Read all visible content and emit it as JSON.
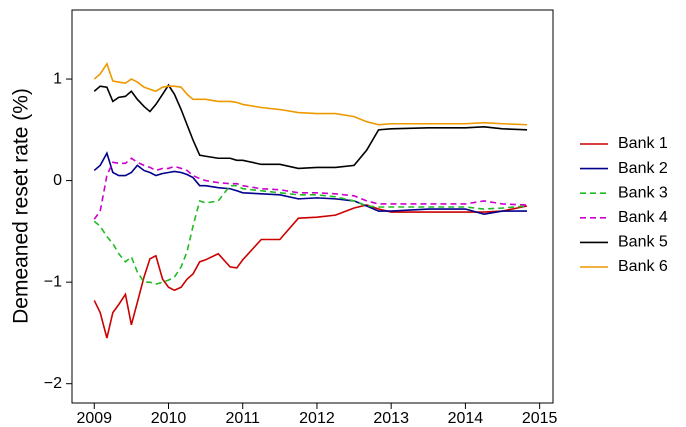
{
  "chart_data": {
    "type": "line",
    "y_label": "Demeaned reset rate (%)",
    "x": [
      2009.0,
      2009.08,
      2009.17,
      2009.25,
      2009.33,
      2009.42,
      2009.5,
      2009.58,
      2009.67,
      2009.75,
      2009.83,
      2009.92,
      2010.0,
      2010.08,
      2010.17,
      2010.25,
      2010.33,
      2010.42,
      2010.5,
      2010.67,
      2010.83,
      2010.92,
      2011.0,
      2011.25,
      2011.5,
      2011.75,
      2012.0,
      2012.25,
      2012.5,
      2012.67,
      2012.83,
      2013.0,
      2013.5,
      2014.0,
      2014.25,
      2014.5,
      2014.83
    ],
    "series": [
      {
        "name": "Bank 1",
        "color": "#cc0000",
        "dash": false,
        "values": [
          -1.18,
          -1.3,
          -1.55,
          -1.3,
          -1.22,
          -1.12,
          -1.42,
          -1.2,
          -0.95,
          -0.77,
          -0.74,
          -0.97,
          -1.05,
          -1.08,
          -1.05,
          -0.97,
          -0.92,
          -0.8,
          -0.78,
          -0.72,
          -0.85,
          -0.86,
          -0.78,
          -0.58,
          -0.58,
          -0.37,
          -0.36,
          -0.34,
          -0.27,
          -0.24,
          -0.28,
          -0.31,
          -0.31,
          -0.31,
          -0.31,
          -0.3,
          -0.25
        ]
      },
      {
        "name": "Bank 2",
        "color": "#00008b",
        "dash": false,
        "values": [
          0.1,
          0.15,
          0.27,
          0.08,
          0.05,
          0.05,
          0.08,
          0.15,
          0.1,
          0.08,
          0.05,
          0.07,
          0.08,
          0.09,
          0.08,
          0.06,
          0.03,
          -0.05,
          -0.05,
          -0.07,
          -0.08,
          -0.1,
          -0.12,
          -0.13,
          -0.14,
          -0.18,
          -0.17,
          -0.18,
          -0.2,
          -0.25,
          -0.3,
          -0.3,
          -0.28,
          -0.28,
          -0.33,
          -0.3,
          -0.3
        ]
      },
      {
        "name": "Bank 3",
        "color": "#22bb22",
        "dash": true,
        "values": [
          -0.4,
          -0.45,
          -0.55,
          -0.62,
          -0.72,
          -0.8,
          -0.75,
          -0.9,
          -1.0,
          -1.0,
          -1.02,
          -1.0,
          -0.98,
          -0.95,
          -0.85,
          -0.7,
          -0.45,
          -0.2,
          -0.22,
          -0.2,
          -0.05,
          -0.05,
          -0.08,
          -0.1,
          -0.12,
          -0.14,
          -0.14,
          -0.16,
          -0.2,
          -0.25,
          -0.26,
          -0.26,
          -0.26,
          -0.26,
          -0.28,
          -0.27,
          -0.25
        ]
      },
      {
        "name": "Bank 4",
        "color": "#cc00cc",
        "dash": true,
        "values": [
          -0.38,
          -0.3,
          0.05,
          0.18,
          0.17,
          0.17,
          0.22,
          0.18,
          0.15,
          0.13,
          0.1,
          0.12,
          0.12,
          0.14,
          0.12,
          0.1,
          0.05,
          0.02,
          0.0,
          -0.02,
          -0.03,
          -0.03,
          -0.05,
          -0.08,
          -0.09,
          -0.12,
          -0.12,
          -0.13,
          -0.15,
          -0.2,
          -0.23,
          -0.23,
          -0.23,
          -0.23,
          -0.2,
          -0.23,
          -0.24
        ]
      },
      {
        "name": "Bank 5",
        "color": "#000000",
        "dash": false,
        "values": [
          0.88,
          0.93,
          0.92,
          0.78,
          0.82,
          0.83,
          0.88,
          0.8,
          0.73,
          0.68,
          0.75,
          0.85,
          0.94,
          0.85,
          0.7,
          0.55,
          0.4,
          0.25,
          0.24,
          0.22,
          0.22,
          0.2,
          0.2,
          0.16,
          0.16,
          0.12,
          0.13,
          0.13,
          0.15,
          0.3,
          0.5,
          0.51,
          0.52,
          0.52,
          0.53,
          0.51,
          0.5
        ]
      },
      {
        "name": "Bank 6",
        "color": "#ee9900",
        "dash": false,
        "values": [
          1.0,
          1.05,
          1.15,
          0.98,
          0.97,
          0.96,
          1.0,
          0.97,
          0.92,
          0.9,
          0.88,
          0.92,
          0.93,
          0.93,
          0.92,
          0.85,
          0.8,
          0.8,
          0.8,
          0.78,
          0.78,
          0.77,
          0.75,
          0.72,
          0.7,
          0.67,
          0.66,
          0.66,
          0.63,
          0.58,
          0.55,
          0.56,
          0.56,
          0.56,
          0.57,
          0.56,
          0.55
        ]
      }
    ],
    "xlim": [
      2008.7,
      2015.18
    ],
    "xticks": [
      2009,
      2010,
      2011,
      2012,
      2013,
      2014,
      2015
    ],
    "ylim": [
      -2.19,
      1.68
    ],
    "yticks": [
      {
        "value": -2,
        "label": "−2"
      },
      {
        "value": -1,
        "label": "−1"
      },
      0,
      1
    ],
    "grid": false,
    "legend": "right"
  }
}
